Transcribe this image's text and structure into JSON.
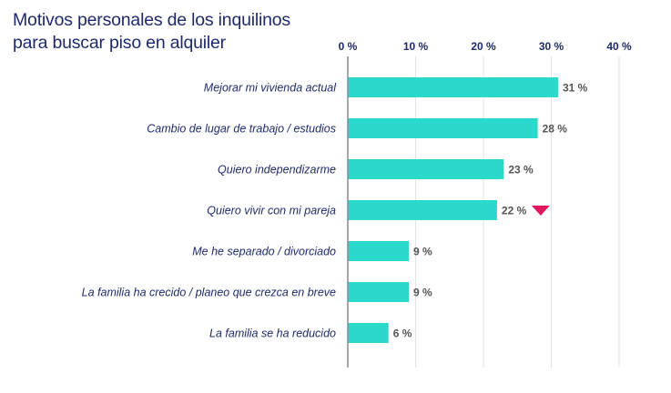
{
  "chart_data": {
    "type": "bar",
    "orientation": "horizontal",
    "title_lines": [
      "Motivos personales de los inquilinos",
      "para buscar piso en alquiler"
    ],
    "categories": [
      "Mejorar mi vivienda actual",
      "Cambio de lugar de trabajo / estudios",
      "Quiero independizarme",
      "Quiero vivir con mi pareja",
      "Me he separado / divorciado",
      "La familia ha crecido / planeo que crezca en breve",
      "La familia se ha reducido"
    ],
    "values": [
      31,
      28,
      23,
      22,
      9,
      9,
      6
    ],
    "value_labels": [
      "31 %",
      "28 %",
      "23 %",
      "22 %",
      "9 %",
      "9 %",
      "6 %"
    ],
    "xlim": [
      0,
      40
    ],
    "ticks": [
      0,
      10,
      20,
      30,
      40
    ],
    "tick_labels": [
      "0 %",
      "10 %",
      "20 %",
      "30 %",
      "40 %"
    ],
    "grid": true,
    "trend_markers": [
      {
        "category_index": 3,
        "direction": "down",
        "color": "#e0185f"
      }
    ],
    "colors": {
      "bar": "#2ad8cc",
      "title": "#1f2a6b",
      "labels": "#1f2a6b",
      "values": "#555555",
      "grid": "#e3e3e3"
    }
  }
}
